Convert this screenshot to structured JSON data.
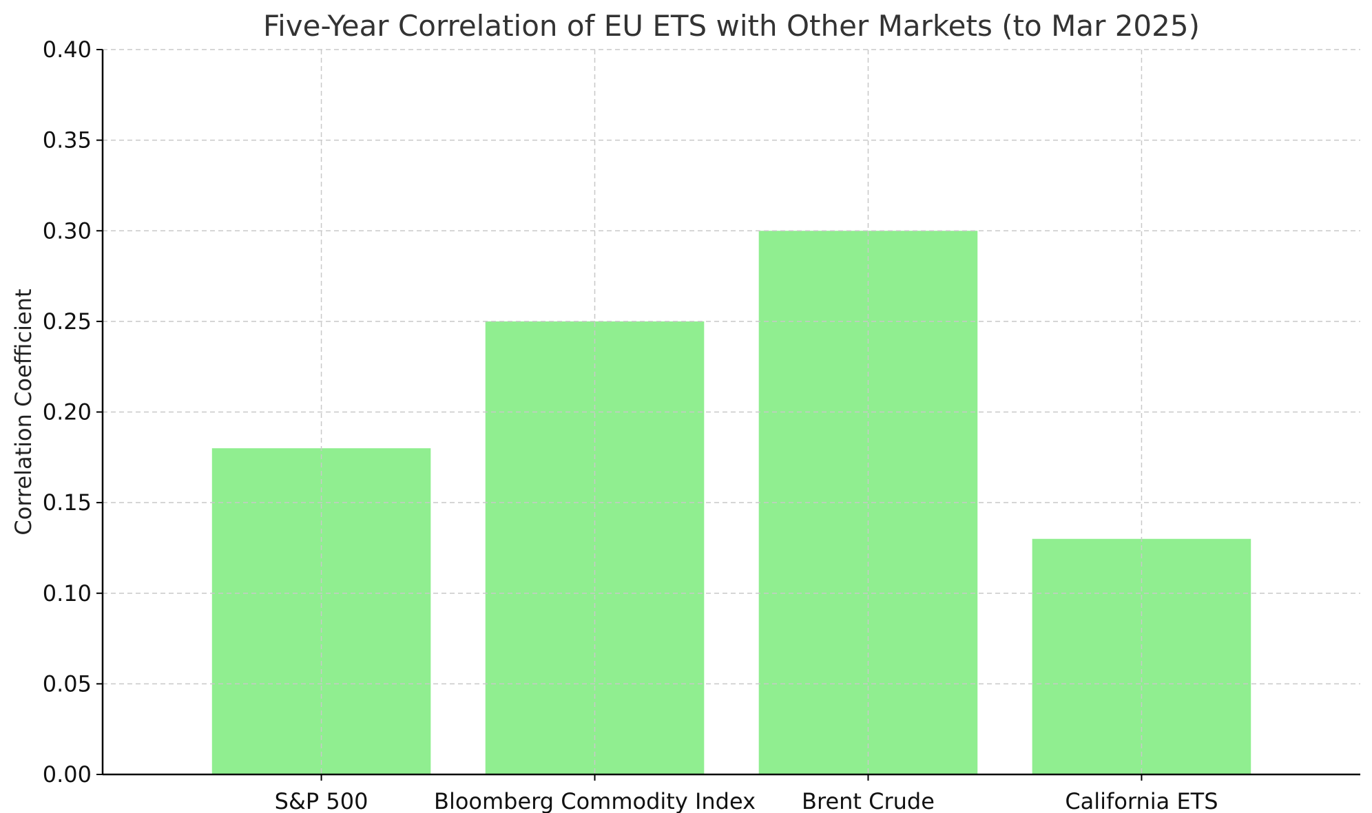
{
  "chart_data": {
    "type": "bar",
    "title": "Five-Year Correlation of EU ETS with Other Markets (to Mar 2025)",
    "xlabel": "",
    "ylabel": "Correlation Coefficient",
    "categories": [
      "S&P 500",
      "Bloomberg Commodity Index",
      "Brent Crude",
      "California ETS"
    ],
    "values": [
      0.18,
      0.25,
      0.3,
      0.13
    ],
    "ylim": [
      0,
      0.4
    ],
    "yticks": [
      "0.00",
      "0.05",
      "0.10",
      "0.15",
      "0.20",
      "0.25",
      "0.30",
      "0.35",
      "0.40"
    ],
    "ytick_values": [
      0,
      0.05,
      0.1,
      0.15,
      0.2,
      0.25,
      0.3,
      0.35,
      0.4
    ],
    "grid": true,
    "bar_color": "#90EE90"
  }
}
